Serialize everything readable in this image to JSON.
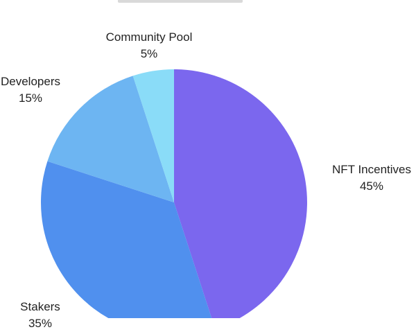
{
  "chart_data": {
    "type": "pie",
    "title": "",
    "legend": "none",
    "slices": [
      {
        "label": "NFT Incentives",
        "value": 45,
        "value_label": "45%",
        "color": "#7b67ee"
      },
      {
        "label": "Stakers",
        "value": 35,
        "value_label": "35%",
        "color": "#5090ee"
      },
      {
        "label": "Developers",
        "value": 15,
        "value_label": "15%",
        "color": "#6db5f2"
      },
      {
        "label": "Community Pool",
        "value": 5,
        "value_label": "5%",
        "color": "#8adcf8"
      }
    ]
  }
}
